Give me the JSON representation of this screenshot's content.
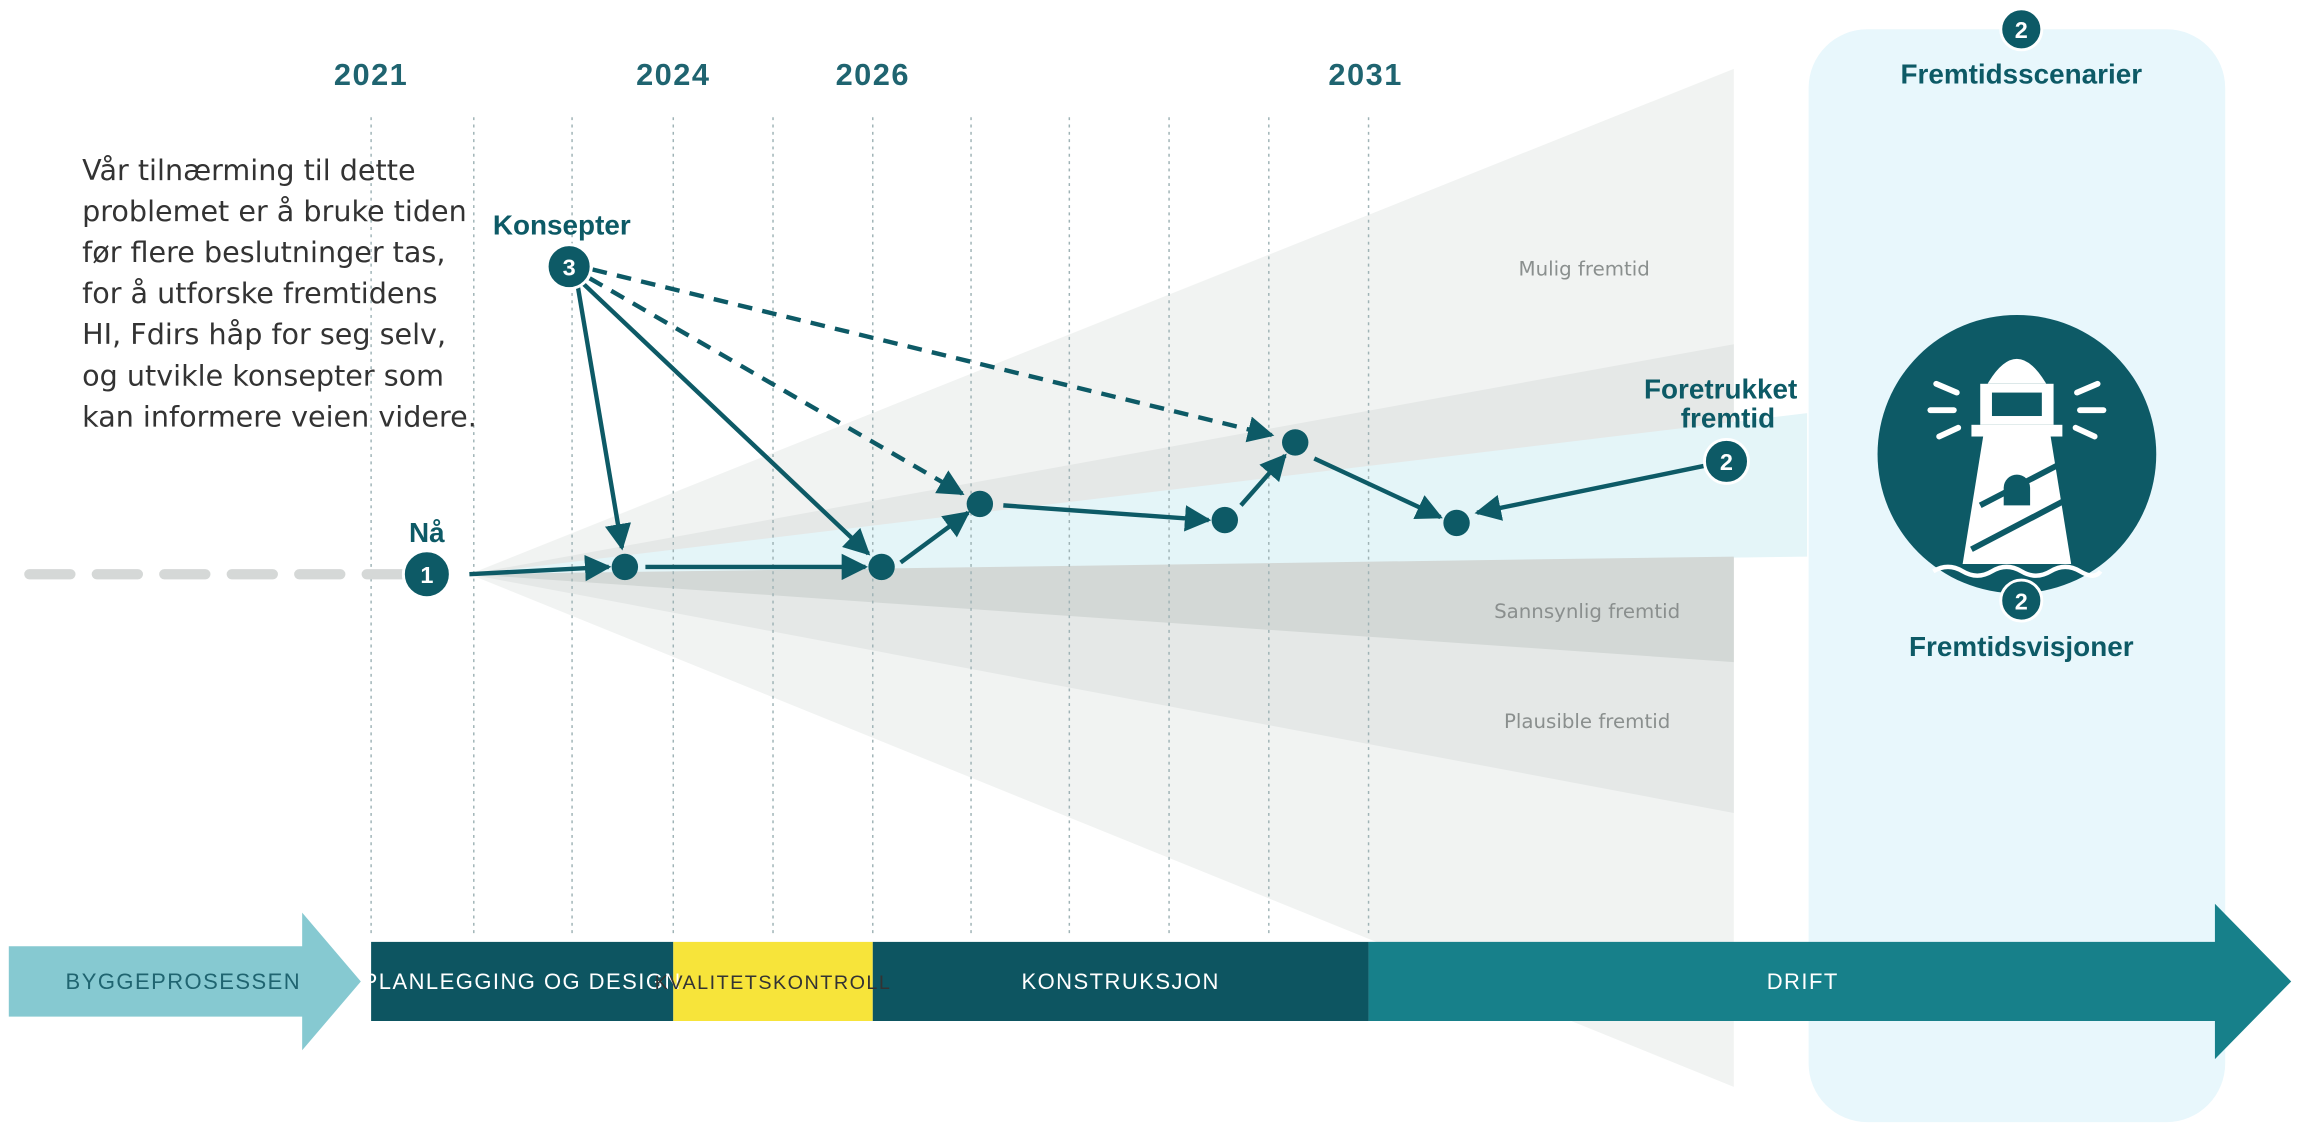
{
  "years": [
    "2021",
    "2024",
    "2026",
    "2031"
  ],
  "intro": [
    "Vår tilnærming til dette",
    "problemet er å bruke tiden",
    "før flere beslutninger tas,",
    "for å utforske fremtidens",
    "HI, Fdirs håp for seg selv,",
    "og utvikle konsepter som",
    "kan informere veien videre."
  ],
  "labels": {
    "now": "Nå",
    "concepts": "Konsepter",
    "preferred": [
      "Foretrukket",
      "fremtid"
    ],
    "scenarios": "Fremtidsscenarier",
    "visions": "Fremtidsvisjoner"
  },
  "badges": {
    "now": "1",
    "concepts": "3",
    "preferred": "2",
    "scenarios": "2",
    "visions": "2"
  },
  "futures": [
    "Mulig fremtid",
    "Sannsynlig fremtid",
    "Plausible fremtid"
  ],
  "process": {
    "label": "BYGGEPROSESSEN",
    "phases": [
      "PLANLEGGING OG DESIGN",
      "KVALITETSKONTROLL",
      "KONSTRUKSJON",
      "DRIFT"
    ]
  }
}
